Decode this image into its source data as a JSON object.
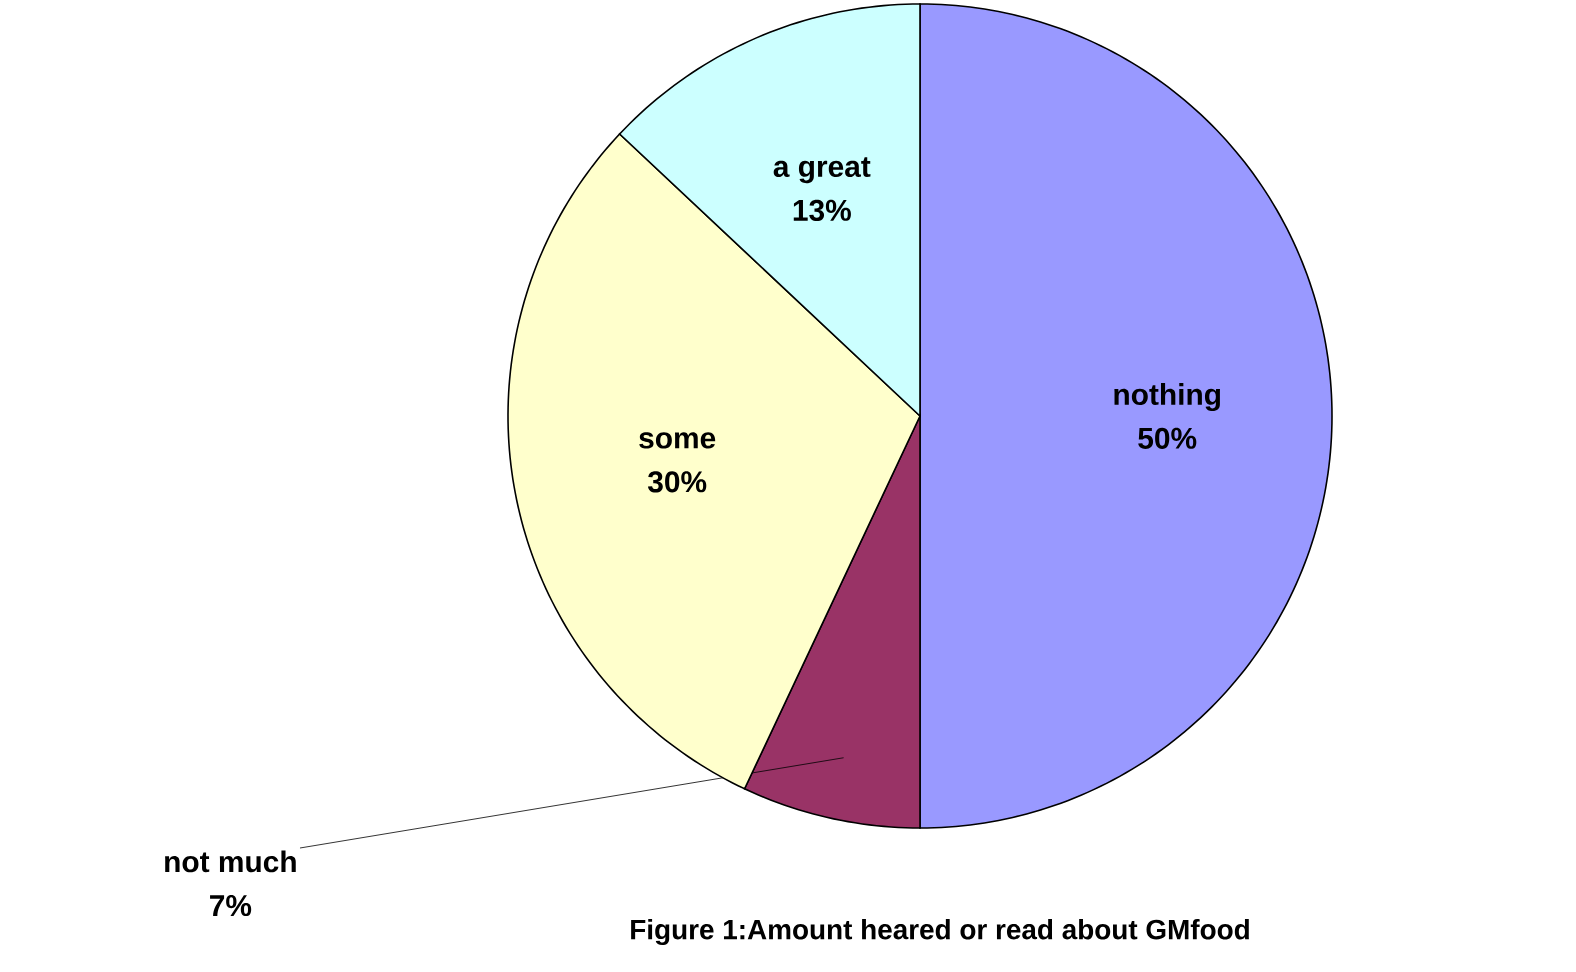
{
  "chart_data": {
    "type": "pie",
    "title": "Figure 1:Amount heared or read about  GMfood",
    "categories": [
      "nothing",
      "not much",
      "some",
      "a great"
    ],
    "values": [
      50,
      7,
      30,
      13
    ],
    "value_labels": [
      "50%",
      "7%",
      "30%",
      "13%"
    ],
    "colors": [
      "#9999ff",
      "#993366",
      "#ffffcc",
      "#ccffff"
    ]
  }
}
